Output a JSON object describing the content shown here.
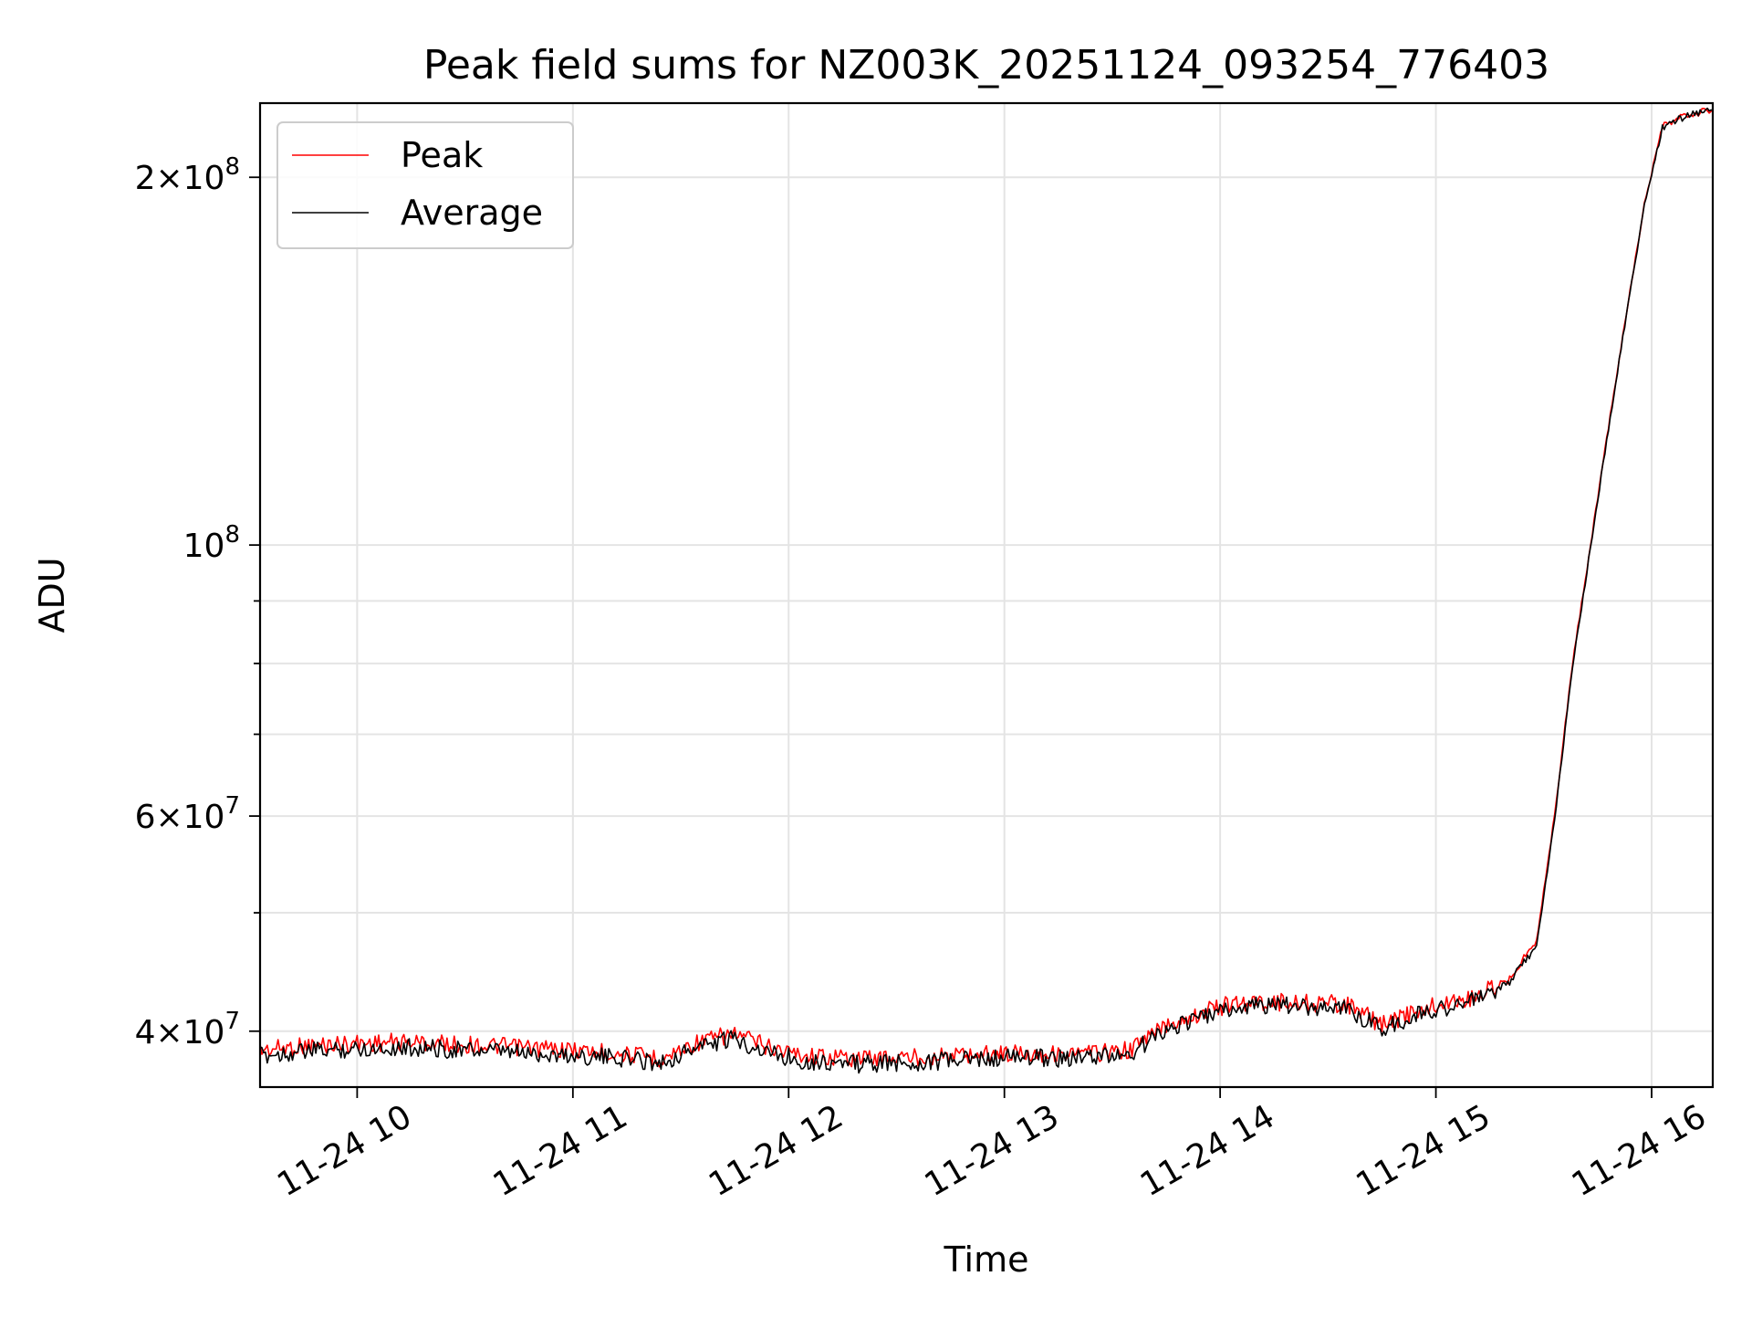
{
  "chart_data": {
    "type": "line",
    "title": "Peak field sums for NZ003K_20251124_093254_776403",
    "xlabel": "Time",
    "ylabel": "ADU",
    "yscale": "log",
    "grid": true,
    "legend_position": "top-left",
    "x_range": [
      "2025-11-24T09:33",
      "2025-11-24T16:17"
    ],
    "ylim": [
      36000000,
      230000000
    ],
    "x_ticks": [
      {
        "value": "2025-11-24T10:00",
        "label": "11-24 10"
      },
      {
        "value": "2025-11-24T11:00",
        "label": "11-24 11"
      },
      {
        "value": "2025-11-24T12:00",
        "label": "11-24 12"
      },
      {
        "value": "2025-11-24T13:00",
        "label": "11-24 13"
      },
      {
        "value": "2025-11-24T14:00",
        "label": "11-24 14"
      },
      {
        "value": "2025-11-24T15:00",
        "label": "11-24 15"
      },
      {
        "value": "2025-11-24T16:00",
        "label": "11-24 16"
      }
    ],
    "y_major_ticks": [
      {
        "value": 40000000,
        "mantissa": "4",
        "exponent": "7"
      },
      {
        "value": 60000000,
        "mantissa": "6",
        "exponent": "7"
      },
      {
        "value": 100000000,
        "mantissa": "",
        "exponent": "8"
      },
      {
        "value": 200000000,
        "mantissa": "2",
        "exponent": "8"
      }
    ],
    "y_minor_ticks": [
      50000000,
      70000000,
      80000000,
      90000000
    ],
    "series": [
      {
        "name": "Peak",
        "color": "#ff0000",
        "x": [
          "2025-11-24T09:33",
          "2025-11-24T09:45",
          "2025-11-24T10:00",
          "2025-11-24T10:15",
          "2025-11-24T10:30",
          "2025-11-24T10:45",
          "2025-11-24T11:00",
          "2025-11-24T11:15",
          "2025-11-24T11:25",
          "2025-11-24T11:35",
          "2025-11-24T11:45",
          "2025-11-24T11:55",
          "2025-11-24T12:05",
          "2025-11-24T12:20",
          "2025-11-24T12:35",
          "2025-11-24T12:50",
          "2025-11-24T13:05",
          "2025-11-24T13:20",
          "2025-11-24T13:35",
          "2025-11-24T13:45",
          "2025-11-24T14:00",
          "2025-11-24T14:10",
          "2025-11-24T14:25",
          "2025-11-24T14:35",
          "2025-11-24T14:45",
          "2025-11-24T15:00",
          "2025-11-24T15:10",
          "2025-11-24T15:20",
          "2025-11-24T15:28",
          "2025-11-24T15:33",
          "2025-11-24T15:38",
          "2025-11-24T15:43",
          "2025-11-24T15:48",
          "2025-11-24T15:53",
          "2025-11-24T15:58",
          "2025-11-24T16:03",
          "2025-11-24T16:10",
          "2025-11-24T16:17"
        ],
        "y": [
          38600000,
          38900000,
          39100000,
          39200000,
          39000000,
          38800000,
          38600000,
          38300000,
          38000000,
          39200000,
          39800000,
          38800000,
          38200000,
          38000000,
          38100000,
          38300000,
          38400000,
          38300000,
          38600000,
          40500000,
          41900000,
          42300000,
          42200000,
          42100000,
          40500000,
          42000000,
          42600000,
          44000000,
          47500000,
          60000000,
          80000000,
          100000000,
          125000000,
          155000000,
          190000000,
          220000000,
          225000000,
          227000000
        ]
      },
      {
        "name": "Average",
        "color": "#000000",
        "x": [
          "2025-11-24T09:33",
          "2025-11-24T09:45",
          "2025-11-24T10:00",
          "2025-11-24T10:15",
          "2025-11-24T10:30",
          "2025-11-24T10:45",
          "2025-11-24T11:00",
          "2025-11-24T11:15",
          "2025-11-24T11:25",
          "2025-11-24T11:35",
          "2025-11-24T11:45",
          "2025-11-24T11:55",
          "2025-11-24T12:05",
          "2025-11-24T12:20",
          "2025-11-24T12:35",
          "2025-11-24T12:50",
          "2025-11-24T13:05",
          "2025-11-24T13:20",
          "2025-11-24T13:35",
          "2025-11-24T13:45",
          "2025-11-24T14:00",
          "2025-11-24T14:10",
          "2025-11-24T14:25",
          "2025-11-24T14:35",
          "2025-11-24T14:45",
          "2025-11-24T15:00",
          "2025-11-24T15:10",
          "2025-11-24T15:20",
          "2025-11-24T15:28",
          "2025-11-24T15:33",
          "2025-11-24T15:38",
          "2025-11-24T15:43",
          "2025-11-24T15:48",
          "2025-11-24T15:53",
          "2025-11-24T15:58",
          "2025-11-24T16:03",
          "2025-11-24T16:10",
          "2025-11-24T16:17"
        ],
        "y": [
          38200000,
          38500000,
          38700000,
          38800000,
          38600000,
          38400000,
          38200000,
          38000000,
          37700000,
          38900000,
          39400000,
          38400000,
          37800000,
          37600000,
          37700000,
          37900000,
          38100000,
          38000000,
          38300000,
          40200000,
          41500000,
          42000000,
          41900000,
          41800000,
          40200000,
          41700000,
          42300000,
          43700000,
          47000000,
          59500000,
          79500000,
          99500000,
          124500000,
          154500000,
          189500000,
          219500000,
          225000000,
          227000000
        ]
      }
    ]
  }
}
